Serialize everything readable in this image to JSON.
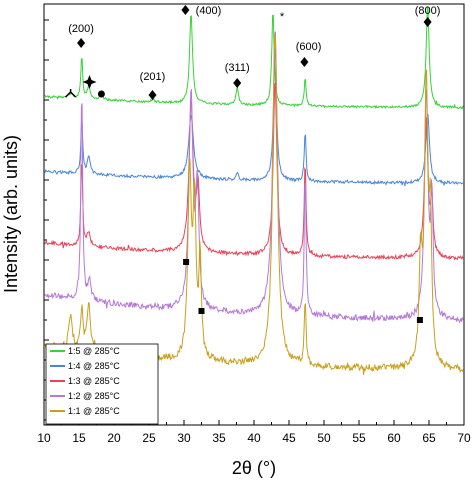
{
  "chart_data": {
    "type": "line",
    "xlabel": "2θ (°)",
    "ylabel": "Intensity (arb. units)",
    "xlim": [
      10,
      70
    ],
    "xticks": [
      10,
      15,
      20,
      25,
      30,
      35,
      40,
      45,
      50,
      55,
      60,
      65,
      70
    ],
    "x_tick_labels": [
      "10",
      "15",
      "20",
      "25",
      "30",
      "35",
      "40",
      "45",
      "50",
      "55",
      "60",
      "65",
      "70"
    ],
    "legend_position": "bottom-left",
    "series": [
      {
        "name": "1:5 @ 285°C",
        "color": "#3ad23a",
        "baseline": 0.12,
        "peaks": [
          [
            13.8,
            0.04,
            0.3
          ],
          [
            15.4,
            0.4,
            0.15
          ],
          [
            16.4,
            0.12,
            0.25
          ],
          [
            18.2,
            0.03,
            0.3
          ],
          [
            25.5,
            0.02,
            0.3
          ],
          [
            31.0,
            0.85,
            0.25
          ],
          [
            37.6,
            0.17,
            0.2
          ],
          [
            42.7,
            0.9,
            0.2
          ],
          [
            47.3,
            0.27,
            0.15
          ],
          [
            64.8,
            0.98,
            0.25
          ]
        ]
      },
      {
        "name": "1:4 @ 285°C",
        "color": "#4a86d9",
        "baseline": 0.1,
        "peaks": [
          [
            15.4,
            0.41,
            0.15
          ],
          [
            16.4,
            0.12,
            0.25
          ],
          [
            31.0,
            0.47,
            0.4
          ],
          [
            37.6,
            0.05,
            0.2
          ],
          [
            43.0,
            1.0,
            0.25
          ],
          [
            47.3,
            0.37,
            0.15
          ],
          [
            64.8,
            0.52,
            0.3
          ]
        ]
      },
      {
        "name": "1:3 @ 285°C",
        "color": "#e8435a",
        "baseline": 0.1,
        "peaks": [
          [
            15.4,
            0.5,
            0.15
          ],
          [
            16.4,
            0.08,
            0.25
          ],
          [
            31.0,
            0.85,
            0.35
          ],
          [
            32.0,
            0.35,
            0.25
          ],
          [
            43.0,
            1.0,
            0.3
          ],
          [
            47.3,
            0.55,
            0.15
          ],
          [
            64.6,
            0.8,
            0.3
          ],
          [
            65.4,
            0.3,
            0.2
          ]
        ]
      },
      {
        "name": "1:2 @ 285°C",
        "color": "#b57ad8",
        "baseline": 0.1,
        "peaks": [
          [
            15.4,
            0.75,
            0.15
          ],
          [
            16.5,
            0.07,
            0.25
          ],
          [
            31.0,
            0.75,
            0.35
          ],
          [
            31.9,
            0.4,
            0.25
          ],
          [
            43.0,
            1.0,
            0.4
          ],
          [
            47.3,
            0.5,
            0.15
          ],
          [
            64.6,
            0.8,
            0.3
          ],
          [
            65.4,
            0.4,
            0.2
          ]
        ]
      },
      {
        "name": "1:1 @ 285°C",
        "color": "#c8a020",
        "baseline": 0.08,
        "peaks": [
          [
            13.8,
            0.1,
            0.3
          ],
          [
            15.4,
            0.12,
            0.2
          ],
          [
            16.4,
            0.14,
            0.3
          ],
          [
            30.8,
            0.55,
            0.3
          ],
          [
            31.5,
            0.45,
            0.25
          ],
          [
            32.3,
            0.3,
            0.2
          ],
          [
            43.0,
            1.0,
            0.4
          ],
          [
            47.3,
            0.2,
            0.15
          ],
          [
            63.8,
            0.3,
            0.25
          ],
          [
            64.6,
            0.85,
            0.3
          ],
          [
            65.2,
            0.4,
            0.2
          ]
        ]
      }
    ],
    "annotations": [
      {
        "text": "(200)",
        "x": 15.3
      },
      {
        "text": "(201)",
        "x": 25.5
      },
      {
        "text": "(400)",
        "x": 33.5
      },
      {
        "text": "(311)",
        "x": 37.6
      },
      {
        "text": "(600)",
        "x": 47.8
      },
      {
        "text": "(800)",
        "x": 64.8
      },
      {
        "text": "*",
        "x": 44.0
      }
    ]
  }
}
